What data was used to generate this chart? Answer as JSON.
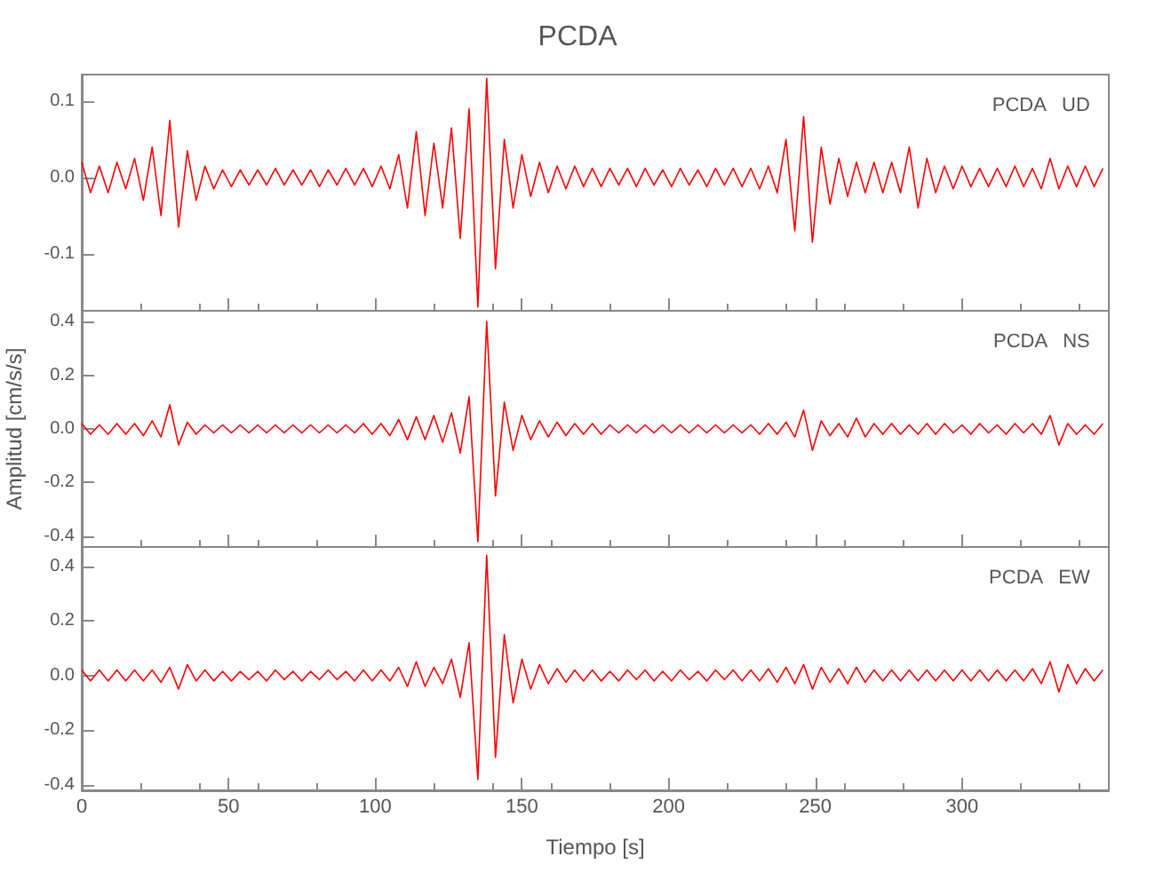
{
  "chart_data": [
    {
      "type": "line",
      "title": "PCDA",
      "annotations": [
        "PCDA   UD"
      ],
      "x": [
        0,
        3,
        6,
        9,
        12,
        15,
        18,
        21,
        24,
        27,
        30,
        33,
        36,
        39,
        42,
        45,
        48,
        51,
        54,
        57,
        60,
        63,
        66,
        69,
        72,
        75,
        78,
        81,
        84,
        87,
        90,
        93,
        96,
        99,
        102,
        105,
        108,
        111,
        114,
        117,
        120,
        123,
        126,
        129,
        132,
        135,
        138,
        141,
        144,
        147,
        150,
        153,
        156,
        159,
        162,
        165,
        168,
        171,
        174,
        177,
        180,
        183,
        186,
        189,
        192,
        195,
        198,
        201,
        204,
        207,
        210,
        213,
        216,
        219,
        222,
        225,
        228,
        231,
        234,
        237,
        240,
        243,
        246,
        249,
        252,
        255,
        258,
        261,
        264,
        267,
        270,
        273,
        276,
        279,
        282,
        285,
        288,
        291,
        294,
        297,
        300,
        303,
        306,
        309,
        312,
        315,
        318,
        321,
        324,
        327,
        330,
        333,
        336,
        339,
        342,
        345,
        348
      ],
      "series": [
        {
          "color": "#ff0000",
          "values": [
            0.02,
            -0.02,
            0.015,
            -0.02,
            0.02,
            -0.015,
            0.025,
            -0.03,
            0.04,
            -0.05,
            0.075,
            -0.065,
            0.035,
            -0.03,
            0.015,
            -0.015,
            0.01,
            -0.012,
            0.01,
            -0.01,
            0.01,
            -0.01,
            0.012,
            -0.01,
            0.01,
            -0.01,
            0.01,
            -0.012,
            0.01,
            -0.01,
            0.012,
            -0.01,
            0.012,
            -0.012,
            0.015,
            -0.015,
            0.03,
            -0.04,
            0.06,
            -0.05,
            0.045,
            -0.04,
            0.065,
            -0.08,
            0.09,
            -0.17,
            0.13,
            -0.12,
            0.05,
            -0.04,
            0.03,
            -0.025,
            0.02,
            -0.02,
            0.015,
            -0.015,
            0.015,
            -0.012,
            0.012,
            -0.012,
            0.012,
            -0.01,
            0.012,
            -0.012,
            0.012,
            -0.01,
            0.01,
            -0.012,
            0.012,
            -0.01,
            0.01,
            -0.012,
            0.012,
            -0.01,
            0.012,
            -0.012,
            0.012,
            -0.015,
            0.015,
            -0.02,
            0.05,
            -0.07,
            0.08,
            -0.085,
            0.04,
            -0.035,
            0.025,
            -0.025,
            0.02,
            -0.02,
            0.02,
            -0.02,
            0.02,
            -0.02,
            0.04,
            -0.04,
            0.025,
            -0.02,
            0.015,
            -0.015,
            0.015,
            -0.012,
            0.012,
            -0.012,
            0.012,
            -0.012,
            0.015,
            -0.012,
            0.012,
            -0.015,
            0.025,
            -0.015,
            0.015,
            -0.012,
            0.015,
            -0.012,
            0.012
          ]
        }
      ],
      "xlim": [
        0,
        350
      ],
      "xticks": [
        0,
        50,
        100,
        150,
        200,
        250,
        300
      ],
      "ylim": [
        -0.175,
        0.135
      ],
      "yticks": [
        {
          "value": -0.1,
          "label": "-0.1"
        },
        {
          "value": 0,
          "label": "0.0"
        },
        {
          "value": 0.1,
          "label": "0.1"
        }
      ],
      "tick_labels": "y",
      "grid": false,
      "marker": "none",
      "line_style": "solid"
    },
    {
      "type": "line",
      "ylabel": "Amplitud [cm/s/s]",
      "annotations": [
        "PCDA   NS"
      ],
      "x": [
        0,
        3,
        6,
        9,
        12,
        15,
        18,
        21,
        24,
        27,
        30,
        33,
        36,
        39,
        42,
        45,
        48,
        51,
        54,
        57,
        60,
        63,
        66,
        69,
        72,
        75,
        78,
        81,
        84,
        87,
        90,
        93,
        96,
        99,
        102,
        105,
        108,
        111,
        114,
        117,
        120,
        123,
        126,
        129,
        132,
        135,
        138,
        141,
        144,
        147,
        150,
        153,
        156,
        159,
        162,
        165,
        168,
        171,
        174,
        177,
        180,
        183,
        186,
        189,
        192,
        195,
        198,
        201,
        204,
        207,
        210,
        213,
        216,
        219,
        222,
        225,
        228,
        231,
        234,
        237,
        240,
        243,
        246,
        249,
        252,
        255,
        258,
        261,
        264,
        267,
        270,
        273,
        276,
        279,
        282,
        285,
        288,
        291,
        294,
        297,
        300,
        303,
        306,
        309,
        312,
        315,
        318,
        321,
        324,
        327,
        330,
        333,
        336,
        339,
        342,
        345,
        348
      ],
      "series": [
        {
          "color": "#ff0000",
          "values": [
            0.02,
            -0.02,
            0.015,
            -0.02,
            0.02,
            -0.02,
            0.02,
            -0.025,
            0.03,
            -0.03,
            0.09,
            -0.06,
            0.025,
            -0.02,
            0.015,
            -0.015,
            0.015,
            -0.015,
            0.015,
            -0.015,
            0.015,
            -0.015,
            0.015,
            -0.015,
            0.015,
            -0.015,
            0.015,
            -0.015,
            0.015,
            -0.015,
            0.015,
            -0.015,
            0.02,
            -0.02,
            0.02,
            -0.025,
            0.035,
            -0.04,
            0.045,
            -0.04,
            0.05,
            -0.05,
            0.06,
            -0.09,
            0.12,
            -0.42,
            0.4,
            -0.25,
            0.1,
            -0.08,
            0.05,
            -0.04,
            0.03,
            -0.03,
            0.025,
            -0.025,
            0.02,
            -0.02,
            0.02,
            -0.02,
            0.015,
            -0.015,
            0.015,
            -0.015,
            0.015,
            -0.015,
            0.015,
            -0.015,
            0.015,
            -0.015,
            0.015,
            -0.015,
            0.015,
            -0.015,
            0.015,
            -0.015,
            0.015,
            -0.02,
            0.02,
            -0.02,
            0.025,
            -0.03,
            0.07,
            -0.08,
            0.03,
            -0.025,
            0.02,
            -0.03,
            0.04,
            -0.03,
            0.02,
            -0.02,
            0.02,
            -0.02,
            0.015,
            -0.02,
            0.02,
            -0.02,
            0.02,
            -0.015,
            0.015,
            -0.02,
            0.02,
            -0.015,
            0.015,
            -0.02,
            0.02,
            -0.015,
            0.02,
            -0.02,
            0.05,
            -0.06,
            0.02,
            -0.02,
            0.015,
            -0.02,
            0.02
          ]
        }
      ],
      "xlim": [
        0,
        350
      ],
      "xticks": [
        0,
        50,
        100,
        150,
        200,
        250,
        300
      ],
      "ylim": [
        -0.44,
        0.44
      ],
      "yticks": [
        {
          "value": -0.4,
          "label": "-0.4"
        },
        {
          "value": -0.2,
          "label": "-0.2"
        },
        {
          "value": 0,
          "label": "0.0"
        },
        {
          "value": 0.2,
          "label": "0.2"
        },
        {
          "value": 0.4,
          "label": "0.4"
        }
      ],
      "tick_labels": "y",
      "grid": false,
      "marker": "none",
      "line_style": "solid"
    },
    {
      "type": "line",
      "xlabel": "Tiempo [s]",
      "annotations": [
        "PCDA   EW"
      ],
      "x": [
        0,
        3,
        6,
        9,
        12,
        15,
        18,
        21,
        24,
        27,
        30,
        33,
        36,
        39,
        42,
        45,
        48,
        51,
        54,
        57,
        60,
        63,
        66,
        69,
        72,
        75,
        78,
        81,
        84,
        87,
        90,
        93,
        96,
        99,
        102,
        105,
        108,
        111,
        114,
        117,
        120,
        123,
        126,
        129,
        132,
        135,
        138,
        141,
        144,
        147,
        150,
        153,
        156,
        159,
        162,
        165,
        168,
        171,
        174,
        177,
        180,
        183,
        186,
        189,
        192,
        195,
        198,
        201,
        204,
        207,
        210,
        213,
        216,
        219,
        222,
        225,
        228,
        231,
        234,
        237,
        240,
        243,
        246,
        249,
        252,
        255,
        258,
        261,
        264,
        267,
        270,
        273,
        276,
        279,
        282,
        285,
        288,
        291,
        294,
        297,
        300,
        303,
        306,
        309,
        312,
        315,
        318,
        321,
        324,
        327,
        330,
        333,
        336,
        339,
        342,
        345,
        348
      ],
      "series": [
        {
          "color": "#ff0000",
          "values": [
            0.02,
            -0.02,
            0.02,
            -0.02,
            0.02,
            -0.02,
            0.02,
            -0.02,
            0.02,
            -0.025,
            0.03,
            -0.05,
            0.04,
            -0.02,
            0.02,
            -0.02,
            0.015,
            -0.02,
            0.015,
            -0.015,
            0.015,
            -0.02,
            0.02,
            -0.015,
            0.015,
            -0.02,
            0.015,
            -0.015,
            0.02,
            -0.015,
            0.015,
            -0.02,
            0.02,
            -0.02,
            0.02,
            -0.02,
            0.03,
            -0.04,
            0.05,
            -0.04,
            0.03,
            -0.03,
            0.06,
            -0.08,
            0.12,
            -0.38,
            0.44,
            -0.3,
            0.15,
            -0.1,
            0.06,
            -0.05,
            0.04,
            -0.03,
            0.025,
            -0.025,
            0.02,
            -0.02,
            0.02,
            -0.02,
            0.015,
            -0.02,
            0.02,
            -0.015,
            0.02,
            -0.02,
            0.015,
            -0.02,
            0.02,
            -0.015,
            0.015,
            -0.02,
            0.02,
            -0.015,
            0.02,
            -0.02,
            0.02,
            -0.02,
            0.025,
            -0.025,
            0.03,
            -0.03,
            0.04,
            -0.05,
            0.03,
            -0.025,
            0.025,
            -0.03,
            0.03,
            -0.025,
            0.02,
            -0.02,
            0.02,
            -0.02,
            0.02,
            -0.02,
            0.02,
            -0.02,
            0.02,
            -0.02,
            0.02,
            -0.02,
            0.02,
            -0.02,
            0.02,
            -0.02,
            0.02,
            -0.02,
            0.025,
            -0.03,
            0.05,
            -0.06,
            0.04,
            -0.03,
            0.025,
            -0.02,
            0.02
          ]
        }
      ],
      "xlim": [
        0,
        350
      ],
      "xticks": [
        0,
        50,
        100,
        150,
        200,
        250,
        300
      ],
      "ylim": [
        -0.42,
        0.47
      ],
      "yticks": [
        {
          "value": -0.4,
          "label": "-0.4"
        },
        {
          "value": -0.2,
          "label": "-0.2"
        },
        {
          "value": 0,
          "label": "0.0"
        },
        {
          "value": 0.2,
          "label": "0.2"
        },
        {
          "value": 0.4,
          "label": "0.4"
        }
      ],
      "grid": false,
      "marker": "none",
      "line_style": "solid"
    }
  ]
}
